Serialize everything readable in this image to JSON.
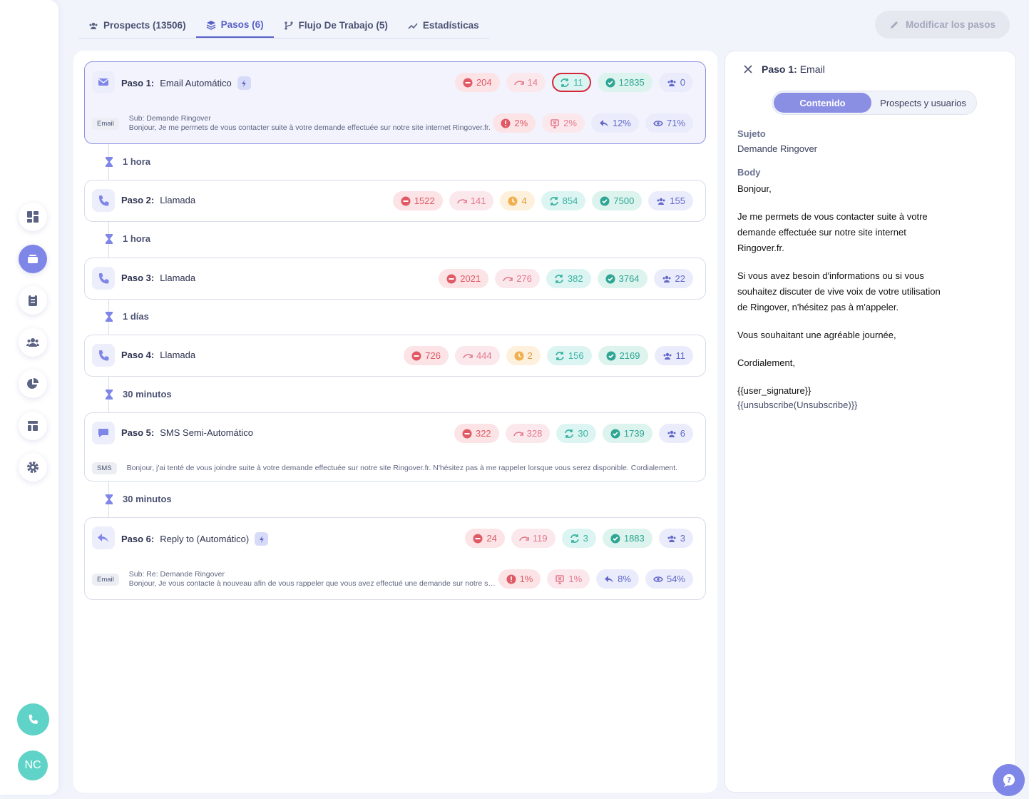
{
  "tabs": [
    {
      "label": "Prospects (13506)",
      "icon": "users-icon"
    },
    {
      "label": "Pasos (6)",
      "icon": "layers-icon"
    },
    {
      "label": "Flujo De Trabajo (5)",
      "icon": "branch-icon"
    },
    {
      "label": "Estadísticas",
      "icon": "trend-icon"
    }
  ],
  "modify_button": "Modificar los pasos",
  "steps": [
    {
      "num": "Paso 1:",
      "name": "Email Automático",
      "stats": [
        "204",
        "14",
        "11",
        "12835",
        "0"
      ],
      "chip": "Email",
      "sub": "Sub: Demande Ringover",
      "preview": "Bonjour, Je me permets de vous contacter suite à votre demande effectuée sur notre site internet Ringover.fr.",
      "rates": [
        "2%",
        "2%",
        "12%",
        "71%"
      ]
    },
    {
      "num": "Paso 2:",
      "name": "Llamada",
      "stats": [
        "1522",
        "141",
        "4",
        "854",
        "7500",
        "155"
      ]
    },
    {
      "num": "Paso 3:",
      "name": "Llamada",
      "stats": [
        "2021",
        "276",
        "382",
        "3764",
        "22"
      ]
    },
    {
      "num": "Paso 4:",
      "name": "Llamada",
      "stats": [
        "726",
        "444",
        "2",
        "156",
        "2169",
        "11"
      ]
    },
    {
      "num": "Paso 5:",
      "name": "SMS Semi-Automático",
      "stats": [
        "322",
        "328",
        "30",
        "1739",
        "6"
      ],
      "chip": "SMS",
      "preview": "Bonjour, j'ai tenté de vous joindre suite à votre demande effectuée sur notre site Ringover.fr. N'hésitez pas à me rappeler lorsque vous serez disponible. Cordialement."
    },
    {
      "num": "Paso 6:",
      "name": "Reply to (Automático)",
      "stats": [
        "24",
        "119",
        "3",
        "1883",
        "3"
      ],
      "chip": "Email",
      "sub": "Sub: Re: Demande Ringover",
      "preview": "Bonjour,    Je vous contacte à nouveau afin de vous rappeler que vous avez effectué une demande sur notre site.",
      "rates": [
        "1%",
        "1%",
        "8%",
        "54%"
      ]
    }
  ],
  "delays": [
    "1 hora",
    "1 hora",
    "1 días",
    "30 minutos",
    "30 minutos"
  ],
  "side": {
    "step_num": "Paso 1:",
    "step_type": "Email",
    "seg_on": "Contenido",
    "seg_off": "Prospects y usuarios",
    "subject_label": "Sujeto",
    "subject": "Demande Ringover",
    "body_label": "Body",
    "body": [
      "Bonjour,",
      "Je me permets de vous contacter suite à votre demande effectuée sur notre site internet Ringover.fr.",
      "Si vous avez besoin d'informations ou si vous souhaitez discuter de vive voix de votre utilisation de Ringover, n'hésitez pas à m'appeler.",
      "Vous souhaitant une agréable journée,",
      "Cordialement,"
    ],
    "signature": "{{user_signature}}",
    "unsubscribe": "{{unsubscribe(Unsubscribe)}}"
  },
  "user_initials": "NC",
  "colors": {
    "accent": "#5860c9",
    "teal": "#5fd3c7",
    "selected_outline": "#d6263a"
  }
}
